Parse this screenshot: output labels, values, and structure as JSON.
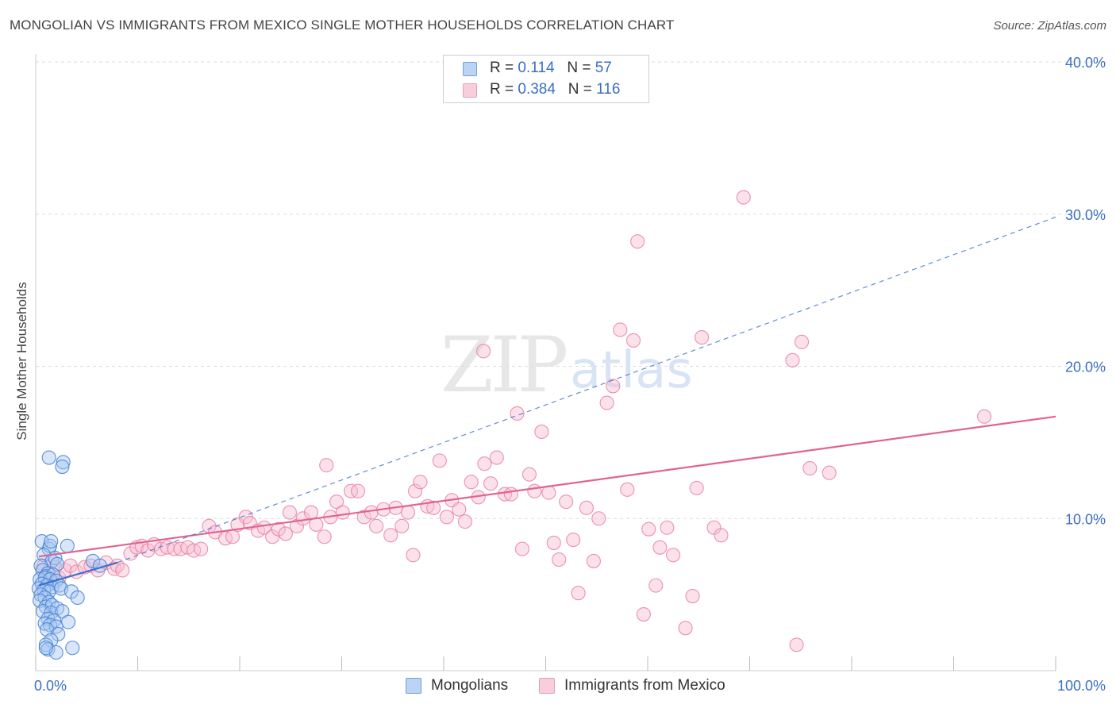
{
  "header": {
    "title": "MONGOLIAN VS IMMIGRANTS FROM MEXICO SINGLE MOTHER HOUSEHOLDS CORRELATION CHART",
    "source": "Source: ZipAtlas.com"
  },
  "watermark": {
    "zip": "ZIP",
    "atlas": "atlas"
  },
  "legend_top": {
    "rows": [
      {
        "r_label": "R = ",
        "r_value": "0.114",
        "n_label": "N = ",
        "n_value": "57"
      },
      {
        "r_label": "R = ",
        "r_value": "0.384",
        "n_label": "N = ",
        "n_value": "116"
      }
    ]
  },
  "legend_bottom": {
    "items": [
      {
        "label": "Mongolians"
      },
      {
        "label": "Immigrants from Mexico"
      }
    ]
  },
  "colors": {
    "mongolians_fill": "#a9c8f0",
    "mongolians_stroke": "#4a84d8",
    "mongolians_line": "#3a6fd0",
    "mexico_fill": "#f6bfd1",
    "mexico_stroke": "#e97fa2",
    "mexico_line": "#e0648f",
    "axis_label": "#3b6fc4",
    "grid": "#dddddd"
  },
  "chart_data": {
    "type": "scatter",
    "title": "MONGOLIAN VS IMMIGRANTS FROM MEXICO SINGLE MOTHER HOUSEHOLDS CORRELATION CHART",
    "xlabel": "",
    "ylabel": "Single Mother Households",
    "xlim": [
      0,
      100
    ],
    "ylim": [
      0,
      40
    ],
    "x_tick_labels": [
      "0.0%",
      "100.0%"
    ],
    "y_ticks": [
      {
        "value": 10,
        "label": "10.0%"
      },
      {
        "value": 20,
        "label": "20.0%"
      },
      {
        "value": 30,
        "label": "30.0%"
      },
      {
        "value": 40,
        "label": "40.0%"
      }
    ],
    "grid": true,
    "legend_position": "top-center",
    "series": [
      {
        "name": "Mongolians",
        "r": 0.114,
        "n": 57,
        "trend_solid": {
          "x": [
            0.3,
            8
          ],
          "y": [
            5.6,
            7.1
          ]
        },
        "trend_dashed": {
          "x": [
            8,
            100
          ],
          "y": [
            7.1,
            29.8
          ]
        },
        "points": [
          [
            0.6,
            8.5
          ],
          [
            1.3,
            8.0
          ],
          [
            1.4,
            8.2
          ],
          [
            1.5,
            8.5
          ],
          [
            3.1,
            8.2
          ],
          [
            0.8,
            7.6
          ],
          [
            1.6,
            7.2
          ],
          [
            1.9,
            7.4
          ],
          [
            2.1,
            7.0
          ],
          [
            5.6,
            7.2
          ],
          [
            0.5,
            6.9
          ],
          [
            0.7,
            6.6
          ],
          [
            1.2,
            6.4
          ],
          [
            1.0,
            6.2
          ],
          [
            1.7,
            6.3
          ],
          [
            0.4,
            6.0
          ],
          [
            0.9,
            6.1
          ],
          [
            1.4,
            6.0
          ],
          [
            2.0,
            5.9
          ],
          [
            0.6,
            5.7
          ],
          [
            1.1,
            5.6
          ],
          [
            1.6,
            5.5
          ],
          [
            2.3,
            5.6
          ],
          [
            0.3,
            5.4
          ],
          [
            0.8,
            5.3
          ],
          [
            1.3,
            5.2
          ],
          [
            2.5,
            5.4
          ],
          [
            3.5,
            5.2
          ],
          [
            6.3,
            6.9
          ],
          [
            0.5,
            5.0
          ],
          [
            0.9,
            4.8
          ],
          [
            0.4,
            4.6
          ],
          [
            4.1,
            4.8
          ],
          [
            1.3,
            4.5
          ],
          [
            1.0,
            4.2
          ],
          [
            1.6,
            4.3
          ],
          [
            2.1,
            4.1
          ],
          [
            0.7,
            3.9
          ],
          [
            1.5,
            3.8
          ],
          [
            2.6,
            3.9
          ],
          [
            1.2,
            3.4
          ],
          [
            1.8,
            3.3
          ],
          [
            3.2,
            3.2
          ],
          [
            0.9,
            3.1
          ],
          [
            1.4,
            3.0
          ],
          [
            2.0,
            2.9
          ],
          [
            1.1,
            2.7
          ],
          [
            2.2,
            2.4
          ],
          [
            1.5,
            2.0
          ],
          [
            1.0,
            1.7
          ],
          [
            3.6,
            1.5
          ],
          [
            1.2,
            1.4
          ],
          [
            2.0,
            1.2
          ],
          [
            1.3,
            14.0
          ],
          [
            2.7,
            13.7
          ],
          [
            2.6,
            13.4
          ],
          [
            1.0,
            1.5
          ]
        ]
      },
      {
        "name": "Immigrants from Mexico",
        "r": 0.384,
        "n": 116,
        "trend": {
          "x": [
            0.3,
            100
          ],
          "y": [
            7.5,
            16.7
          ]
        },
        "points": [
          [
            0.8,
            6.9
          ],
          [
            1.2,
            6.5
          ],
          [
            1.5,
            6.0
          ],
          [
            1.9,
            6.8
          ],
          [
            2.3,
            6.1
          ],
          [
            2.9,
            6.6
          ],
          [
            3.4,
            6.9
          ],
          [
            4.0,
            6.5
          ],
          [
            4.8,
            6.8
          ],
          [
            5.4,
            6.9
          ],
          [
            6.1,
            6.6
          ],
          [
            6.9,
            7.1
          ],
          [
            7.7,
            6.7
          ],
          [
            8.0,
            6.9
          ],
          [
            8.5,
            6.6
          ],
          [
            9.3,
            7.7
          ],
          [
            9.9,
            8.1
          ],
          [
            10.4,
            8.2
          ],
          [
            11.0,
            7.9
          ],
          [
            11.6,
            8.3
          ],
          [
            12.3,
            8.0
          ],
          [
            12.9,
            8.1
          ],
          [
            13.6,
            8.0
          ],
          [
            14.2,
            8.0
          ],
          [
            14.9,
            8.1
          ],
          [
            15.5,
            7.9
          ],
          [
            16.2,
            8.0
          ],
          [
            17.0,
            9.5
          ],
          [
            17.6,
            9.1
          ],
          [
            18.6,
            8.7
          ],
          [
            19.3,
            8.8
          ],
          [
            19.8,
            9.6
          ],
          [
            20.6,
            10.1
          ],
          [
            21.0,
            9.7
          ],
          [
            21.8,
            9.2
          ],
          [
            22.4,
            9.4
          ],
          [
            23.2,
            8.8
          ],
          [
            23.8,
            9.3
          ],
          [
            24.5,
            9.0
          ],
          [
            24.9,
            10.4
          ],
          [
            25.6,
            9.5
          ],
          [
            26.2,
            10.0
          ],
          [
            27.0,
            10.4
          ],
          [
            27.5,
            9.6
          ],
          [
            28.3,
            8.8
          ],
          [
            28.9,
            10.1
          ],
          [
            29.5,
            11.1
          ],
          [
            30.1,
            10.4
          ],
          [
            30.9,
            11.8
          ],
          [
            31.6,
            11.8
          ],
          [
            32.2,
            10.1
          ],
          [
            32.9,
            10.4
          ],
          [
            33.4,
            9.5
          ],
          [
            34.1,
            10.6
          ],
          [
            34.8,
            8.9
          ],
          [
            35.3,
            10.7
          ],
          [
            35.9,
            9.5
          ],
          [
            36.5,
            10.4
          ],
          [
            37.2,
            11.8
          ],
          [
            37.7,
            12.4
          ],
          [
            38.4,
            10.8
          ],
          [
            39.0,
            10.7
          ],
          [
            39.6,
            13.8
          ],
          [
            40.3,
            10.1
          ],
          [
            40.8,
            11.2
          ],
          [
            41.5,
            10.6
          ],
          [
            42.1,
            9.8
          ],
          [
            42.7,
            12.4
          ],
          [
            43.4,
            11.4
          ],
          [
            44.0,
            13.6
          ],
          [
            44.6,
            12.3
          ],
          [
            45.2,
            14.0
          ],
          [
            46.0,
            11.6
          ],
          [
            46.6,
            11.6
          ],
          [
            47.2,
            16.9
          ],
          [
            47.7,
            8.0
          ],
          [
            48.4,
            12.9
          ],
          [
            48.9,
            11.8
          ],
          [
            49.6,
            15.7
          ],
          [
            50.3,
            11.7
          ],
          [
            50.8,
            8.4
          ],
          [
            51.3,
            7.3
          ],
          [
            52.0,
            11.1
          ],
          [
            52.7,
            8.6
          ],
          [
            53.2,
            5.1
          ],
          [
            54.0,
            10.7
          ],
          [
            54.7,
            7.2
          ],
          [
            55.2,
            10.0
          ],
          [
            56.0,
            17.6
          ],
          [
            56.6,
            18.7
          ],
          [
            57.3,
            22.4
          ],
          [
            58.0,
            11.9
          ],
          [
            59.0,
            28.2
          ],
          [
            59.6,
            3.7
          ],
          [
            60.1,
            9.3
          ],
          [
            60.8,
            5.6
          ],
          [
            61.2,
            8.1
          ],
          [
            61.9,
            9.4
          ],
          [
            62.5,
            7.6
          ],
          [
            63.7,
            2.8
          ],
          [
            64.4,
            4.9
          ],
          [
            64.8,
            12.0
          ],
          [
            65.3,
            21.9
          ],
          [
            66.5,
            9.4
          ],
          [
            67.2,
            8.9
          ],
          [
            69.4,
            31.1
          ],
          [
            74.6,
            1.7
          ],
          [
            75.1,
            21.6
          ],
          [
            75.9,
            13.3
          ],
          [
            77.8,
            13.0
          ],
          [
            37.0,
            7.6
          ],
          [
            43.9,
            21.0
          ],
          [
            28.5,
            13.5
          ],
          [
            58.6,
            21.7
          ],
          [
            74.2,
            20.4
          ],
          [
            93.0,
            16.7
          ]
        ]
      }
    ]
  }
}
